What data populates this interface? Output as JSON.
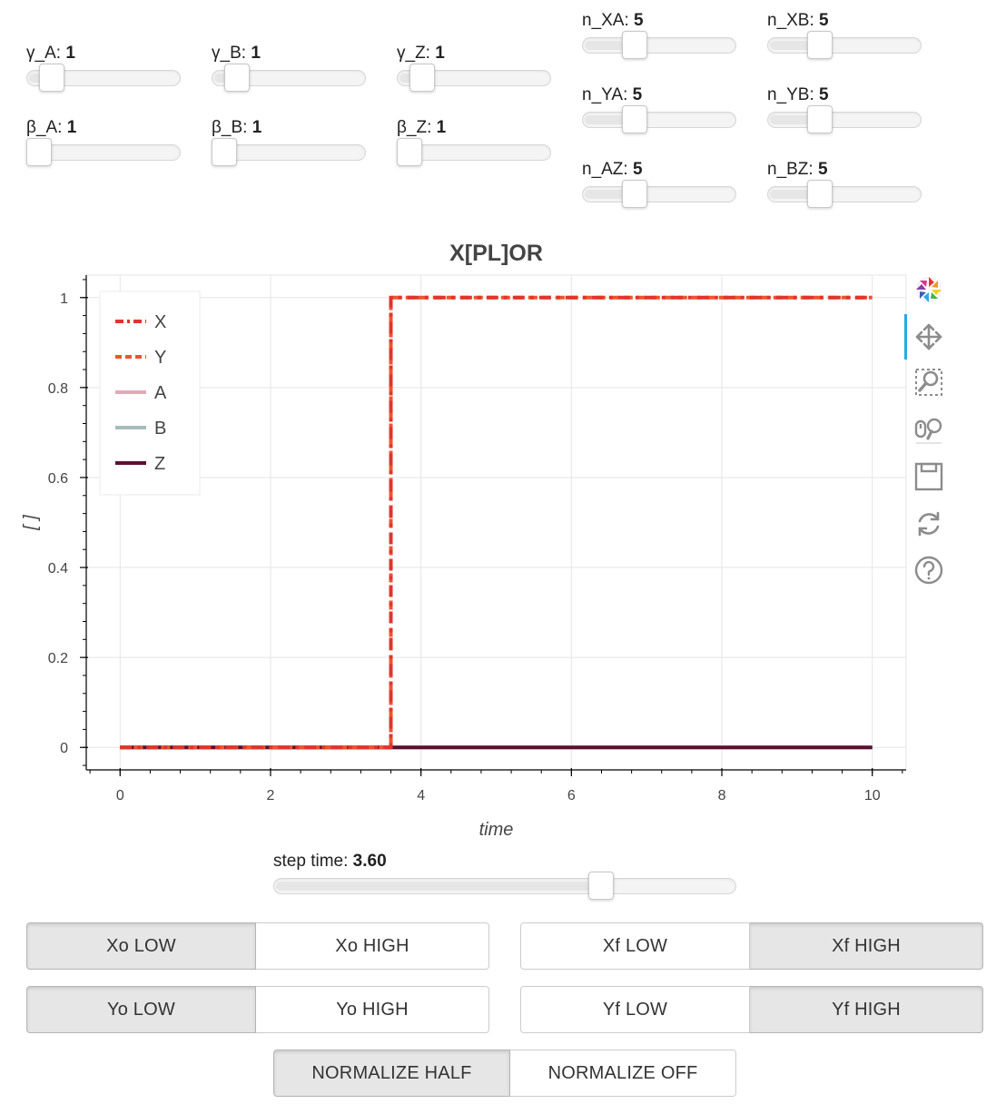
{
  "sliders": {
    "gamma_a": {
      "label": "γ_A: ",
      "value": "1",
      "fraction": 0.1
    },
    "gamma_b": {
      "label": "γ_B: ",
      "value": "1",
      "fraction": 0.1
    },
    "gamma_z": {
      "label": "γ_Z: ",
      "value": "1",
      "fraction": 0.1
    },
    "beta_a": {
      "label": "β_A: ",
      "value": "1",
      "fraction": 0.0
    },
    "beta_b": {
      "label": "β_B: ",
      "value": "1",
      "fraction": 0.0
    },
    "beta_z": {
      "label": "β_Z: ",
      "value": "1",
      "fraction": 0.0
    },
    "n_xa": {
      "label": "n_XA: ",
      "value": "5",
      "fraction": 0.31
    },
    "n_xb": {
      "label": "n_XB: ",
      "value": "5",
      "fraction": 0.31
    },
    "n_ya": {
      "label": "n_YA: ",
      "value": "5",
      "fraction": 0.31
    },
    "n_yb": {
      "label": "n_YB: ",
      "value": "5",
      "fraction": 0.31
    },
    "n_az": {
      "label": "n_AZ: ",
      "value": "5",
      "fraction": 0.31
    },
    "n_bz": {
      "label": "n_BZ: ",
      "value": "5",
      "fraction": 0.31
    },
    "step_time": {
      "label": "step time: ",
      "value": "3.60",
      "fraction": 0.72
    }
  },
  "chart_data": {
    "type": "line",
    "title": "X[PL]OR",
    "xlabel": "time",
    "ylabel": "[ ]",
    "xlim": [
      -0.45,
      10.45
    ],
    "ylim": [
      -0.05,
      1.05
    ],
    "xticks": [
      "0",
      "2",
      "4",
      "6",
      "8",
      "10"
    ],
    "yticks": [
      "0",
      "0.2",
      "0.4",
      "0.6",
      "0.8",
      "1"
    ],
    "grid": true,
    "legend_position": "top-left",
    "series": [
      {
        "name": "X",
        "color": "#e0352b",
        "dash": "dash-dot",
        "x": [
          0,
          3.6,
          3.6,
          10
        ],
        "y": [
          0,
          0,
          1,
          1
        ]
      },
      {
        "name": "Y",
        "color": "#f0542a",
        "dash": "dashed",
        "x": [
          0,
          3.6,
          3.6,
          10
        ],
        "y": [
          0,
          0,
          1,
          1
        ]
      },
      {
        "name": "A",
        "color": "#e3a9b5",
        "dash": "solid",
        "x": [
          0,
          10
        ],
        "y": [
          0,
          0
        ]
      },
      {
        "name": "B",
        "color": "#a4bcbc",
        "dash": "solid",
        "x": [
          0,
          10
        ],
        "y": [
          0,
          0
        ]
      },
      {
        "name": "Z",
        "color": "#5c1030",
        "dash": "solid",
        "x": [
          0,
          10
        ],
        "y": [
          0,
          0
        ]
      }
    ]
  },
  "toolbar": {
    "icons": [
      "bokeh-logo-icon",
      "pan-icon",
      "box-zoom-icon",
      "wheel-zoom-icon",
      "save-icon",
      "reset-icon",
      "help-icon"
    ]
  },
  "buttons": {
    "xo_low": "Xo LOW",
    "xo_high": "Xo HIGH",
    "xf_low": "Xf LOW",
    "xf_high": "Xf HIGH",
    "yo_low": "Yo LOW",
    "yo_high": "Yo HIGH",
    "yf_low": "Yf LOW",
    "yf_high": "Yf HIGH",
    "normalize_half": "NORMALIZE HALF",
    "normalize_off": "NORMALIZE OFF"
  },
  "colors": {
    "accent": "#26aae1",
    "button_active": "#e6e6e6"
  }
}
